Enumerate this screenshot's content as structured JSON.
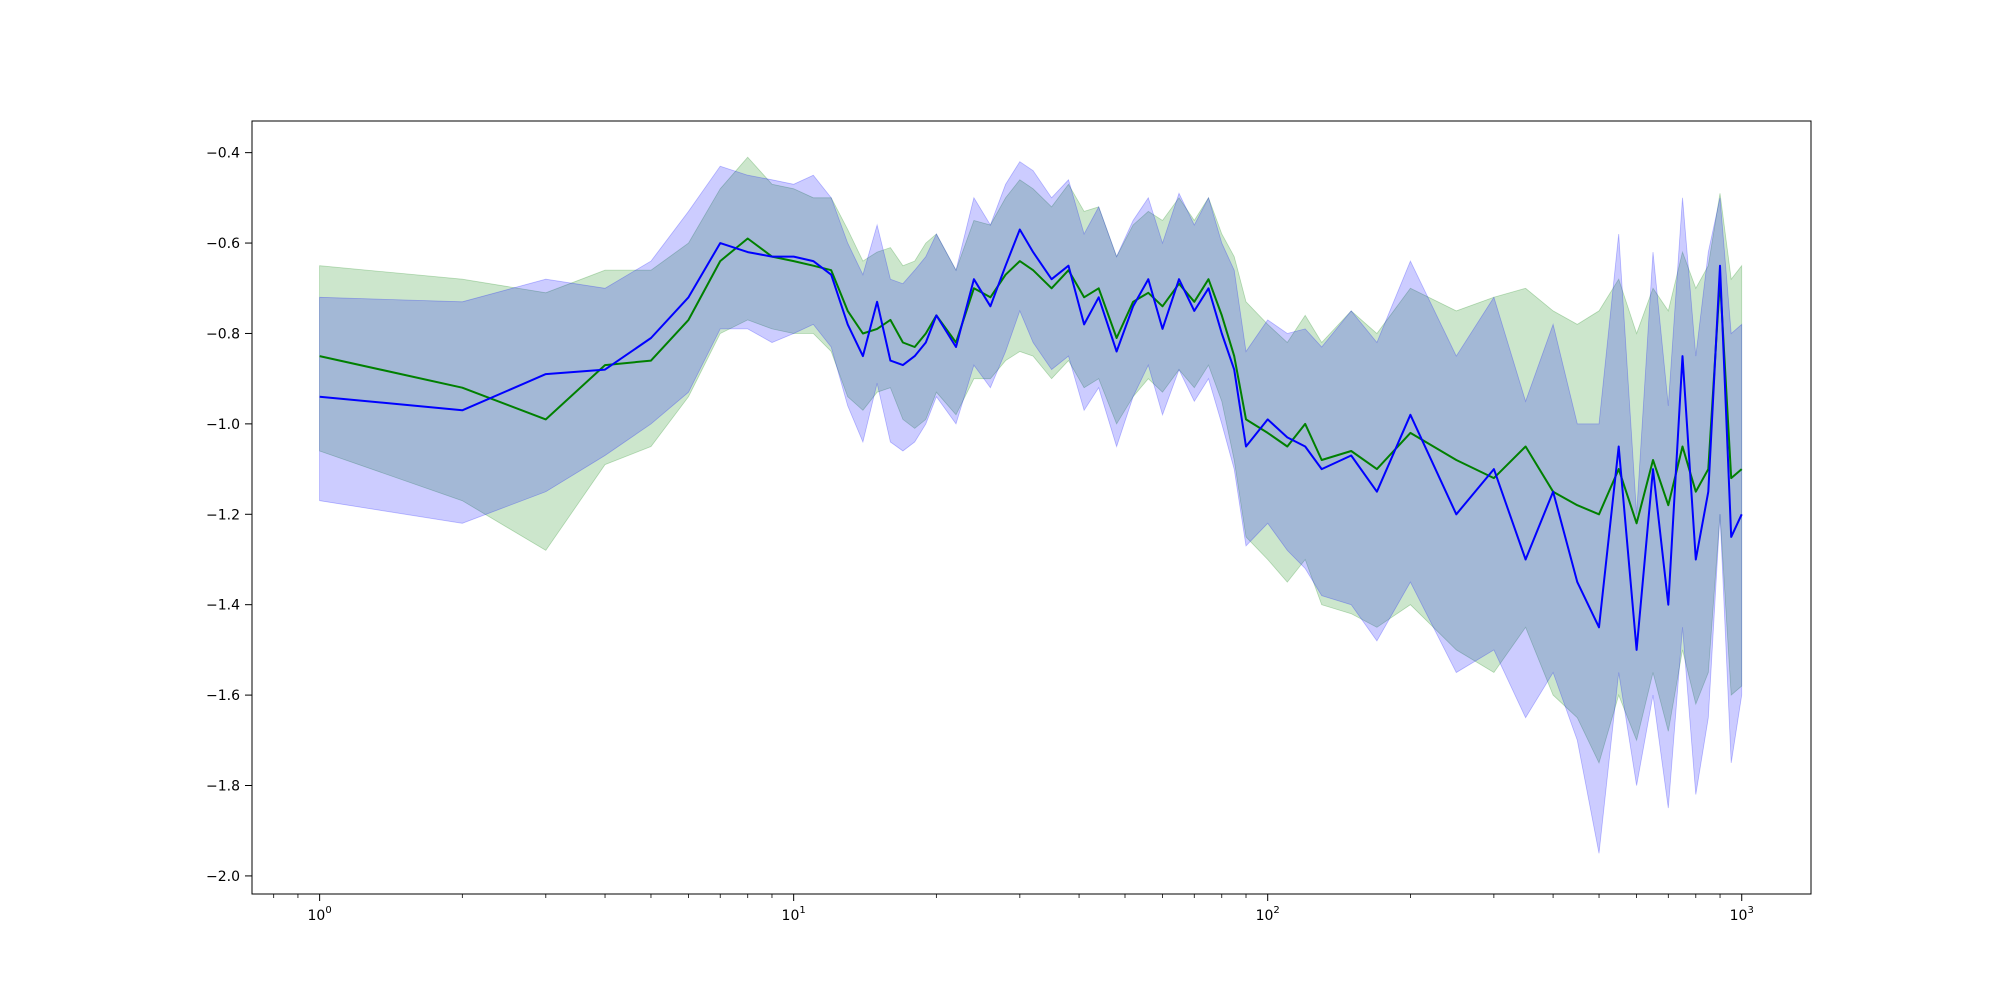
{
  "chart_data": {
    "type": "line",
    "title": "",
    "xlabel": "",
    "ylabel": "",
    "xscale": "log",
    "xlim": [
      0.72,
      1400
    ],
    "ylim": [
      -2.04,
      -0.33
    ],
    "grid": false,
    "legend": "none",
    "x_ticks": [
      {
        "value": 1,
        "base": "10",
        "exp": "0"
      },
      {
        "value": 10,
        "base": "10",
        "exp": "1"
      },
      {
        "value": 100,
        "base": "10",
        "exp": "2"
      },
      {
        "value": 1000,
        "base": "10",
        "exp": "3"
      }
    ],
    "y_ticks": [
      {
        "value": -0.4,
        "label": "−0.4"
      },
      {
        "value": -0.6,
        "label": "−0.6"
      },
      {
        "value": -0.8,
        "label": "−0.8"
      },
      {
        "value": -1.0,
        "label": "−1.0"
      },
      {
        "value": -1.2,
        "label": "−1.2"
      },
      {
        "value": -1.4,
        "label": "−1.4"
      },
      {
        "value": -1.6,
        "label": "−1.6"
      },
      {
        "value": -1.8,
        "label": "−1.8"
      },
      {
        "value": -2.0,
        "label": "−2.0"
      }
    ],
    "series": [
      {
        "color": "#008000",
        "band_color": "#008000",
        "band_opacity": 0.2,
        "x": [
          1,
          2,
          3,
          4,
          5,
          6,
          7,
          8,
          9,
          10,
          11,
          12,
          13,
          14,
          15,
          16,
          17,
          18,
          19,
          20,
          22,
          24,
          26,
          28,
          30,
          32,
          35,
          38,
          41,
          44,
          48,
          52,
          56,
          60,
          65,
          70,
          75,
          80,
          85,
          90,
          100,
          110,
          120,
          130,
          150,
          170,
          200,
          250,
          300,
          350,
          400,
          450,
          500,
          550,
          600,
          650,
          700,
          750,
          800,
          850,
          900,
          950,
          1000
        ],
        "y": [
          -0.85,
          -0.92,
          -0.99,
          -0.87,
          -0.86,
          -0.77,
          -0.64,
          -0.59,
          -0.63,
          -0.64,
          -0.65,
          -0.66,
          -0.75,
          -0.8,
          -0.79,
          -0.77,
          -0.82,
          -0.83,
          -0.8,
          -0.76,
          -0.82,
          -0.7,
          -0.72,
          -0.67,
          -0.64,
          -0.66,
          -0.7,
          -0.66,
          -0.72,
          -0.7,
          -0.81,
          -0.73,
          -0.71,
          -0.74,
          -0.69,
          -0.73,
          -0.68,
          -0.76,
          -0.85,
          -0.99,
          -1.02,
          -1.05,
          -1.0,
          -1.08,
          -1.06,
          -1.1,
          -1.02,
          -1.08,
          -1.12,
          -1.05,
          -1.15,
          -1.18,
          -1.2,
          -1.1,
          -1.22,
          -1.08,
          -1.18,
          -1.05,
          -1.15,
          -1.1,
          -0.68,
          -1.12,
          -1.1
        ],
        "lower": [
          -1.06,
          -1.17,
          -1.28,
          -1.09,
          -1.05,
          -0.94,
          -0.8,
          -0.77,
          -0.79,
          -0.8,
          -0.8,
          -0.84,
          -0.94,
          -0.97,
          -0.93,
          -0.92,
          -0.99,
          -1.01,
          -0.99,
          -0.93,
          -0.98,
          -0.9,
          -0.9,
          -0.86,
          -0.84,
          -0.85,
          -0.9,
          -0.86,
          -0.92,
          -0.9,
          -1.0,
          -0.94,
          -0.9,
          -0.93,
          -0.88,
          -0.92,
          -0.87,
          -0.95,
          -1.08,
          -1.25,
          -1.3,
          -1.35,
          -1.3,
          -1.4,
          -1.42,
          -1.45,
          -1.4,
          -1.5,
          -1.55,
          -1.45,
          -1.6,
          -1.65,
          -1.75,
          -1.6,
          -1.7,
          -1.55,
          -1.68,
          -1.5,
          -1.62,
          -1.55,
          -1.2,
          -1.6,
          -1.58
        ],
        "upper": [
          -0.65,
          -0.68,
          -0.71,
          -0.66,
          -0.66,
          -0.6,
          -0.48,
          -0.41,
          -0.47,
          -0.48,
          -0.5,
          -0.5,
          -0.57,
          -0.64,
          -0.62,
          -0.61,
          -0.65,
          -0.64,
          -0.6,
          -0.58,
          -0.66,
          -0.55,
          -0.56,
          -0.5,
          -0.46,
          -0.48,
          -0.52,
          -0.47,
          -0.53,
          -0.52,
          -0.63,
          -0.56,
          -0.53,
          -0.55,
          -0.5,
          -0.55,
          -0.5,
          -0.58,
          -0.63,
          -0.73,
          -0.78,
          -0.82,
          -0.76,
          -0.82,
          -0.75,
          -0.8,
          -0.7,
          -0.75,
          -0.72,
          -0.7,
          -0.75,
          -0.78,
          -0.75,
          -0.68,
          -0.8,
          -0.7,
          -0.75,
          -0.62,
          -0.7,
          -0.65,
          -0.49,
          -0.68,
          -0.65
        ]
      },
      {
        "color": "#0000ff",
        "band_color": "#0000ff",
        "band_opacity": 0.2,
        "x": [
          1,
          2,
          3,
          4,
          5,
          6,
          7,
          8,
          9,
          10,
          11,
          12,
          13,
          14,
          15,
          16,
          17,
          18,
          19,
          20,
          22,
          24,
          26,
          28,
          30,
          32,
          35,
          38,
          41,
          44,
          48,
          52,
          56,
          60,
          65,
          70,
          75,
          80,
          85,
          90,
          100,
          110,
          120,
          130,
          150,
          170,
          200,
          250,
          300,
          350,
          400,
          450,
          500,
          550,
          600,
          650,
          700,
          750,
          800,
          850,
          900,
          950,
          1000
        ],
        "y": [
          -0.94,
          -0.97,
          -0.89,
          -0.88,
          -0.81,
          -0.72,
          -0.6,
          -0.62,
          -0.63,
          -0.63,
          -0.64,
          -0.67,
          -0.78,
          -0.85,
          -0.73,
          -0.86,
          -0.87,
          -0.85,
          -0.82,
          -0.76,
          -0.83,
          -0.68,
          -0.74,
          -0.65,
          -0.57,
          -0.62,
          -0.68,
          -0.65,
          -0.78,
          -0.72,
          -0.84,
          -0.74,
          -0.68,
          -0.79,
          -0.68,
          -0.75,
          -0.7,
          -0.8,
          -0.88,
          -1.05,
          -0.99,
          -1.03,
          -1.05,
          -1.1,
          -1.07,
          -1.15,
          -0.98,
          -1.2,
          -1.1,
          -1.3,
          -1.15,
          -1.35,
          -1.45,
          -1.05,
          -1.5,
          -1.1,
          -1.4,
          -0.85,
          -1.3,
          -1.15,
          -0.65,
          -1.25,
          -1.2
        ],
        "lower": [
          -1.17,
          -1.22,
          -1.15,
          -1.07,
          -1.0,
          -0.93,
          -0.79,
          -0.79,
          -0.82,
          -0.8,
          -0.78,
          -0.83,
          -0.96,
          -1.04,
          -0.91,
          -1.04,
          -1.06,
          -1.04,
          -1.0,
          -0.94,
          -1.0,
          -0.87,
          -0.92,
          -0.84,
          -0.75,
          -0.82,
          -0.88,
          -0.85,
          -0.97,
          -0.92,
          -1.05,
          -0.94,
          -0.87,
          -0.98,
          -0.88,
          -0.95,
          -0.9,
          -1.0,
          -1.1,
          -1.27,
          -1.22,
          -1.28,
          -1.32,
          -1.38,
          -1.4,
          -1.48,
          -1.35,
          -1.55,
          -1.5,
          -1.65,
          -1.55,
          -1.7,
          -1.95,
          -1.55,
          -1.8,
          -1.6,
          -1.85,
          -1.45,
          -1.82,
          -1.65,
          -1.2,
          -1.75,
          -1.6
        ],
        "upper": [
          -0.72,
          -0.73,
          -0.68,
          -0.7,
          -0.64,
          -0.53,
          -0.43,
          -0.45,
          -0.46,
          -0.47,
          -0.45,
          -0.5,
          -0.6,
          -0.67,
          -0.56,
          -0.68,
          -0.69,
          -0.66,
          -0.63,
          -0.58,
          -0.66,
          -0.5,
          -0.56,
          -0.47,
          -0.42,
          -0.44,
          -0.5,
          -0.46,
          -0.58,
          -0.52,
          -0.63,
          -0.55,
          -0.5,
          -0.6,
          -0.49,
          -0.56,
          -0.5,
          -0.6,
          -0.66,
          -0.84,
          -0.77,
          -0.8,
          -0.79,
          -0.83,
          -0.75,
          -0.82,
          -0.64,
          -0.85,
          -0.72,
          -0.95,
          -0.78,
          -1.0,
          -1.0,
          -0.58,
          -1.2,
          -0.62,
          -0.96,
          -0.5,
          -0.85,
          -0.62,
          -0.5,
          -0.8,
          -0.78
        ]
      }
    ]
  }
}
